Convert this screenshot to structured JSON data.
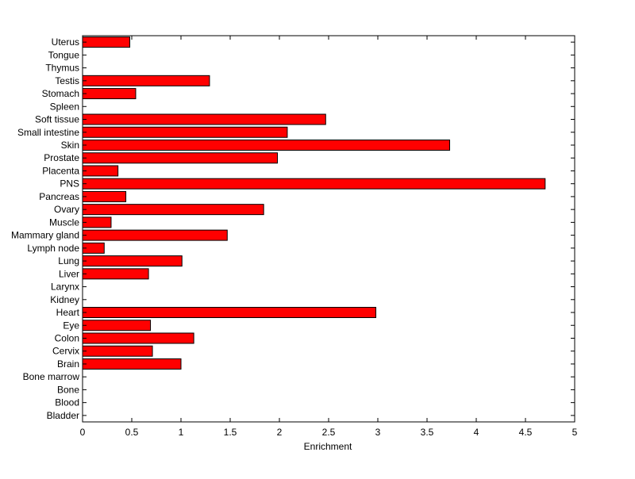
{
  "chart_data": {
    "type": "bar",
    "orientation": "horizontal",
    "title": "",
    "xlabel": "Enrichment",
    "ylabel": "",
    "xlim": [
      0,
      5
    ],
    "xticks": [
      0,
      0.5,
      1,
      1.5,
      2,
      2.5,
      3,
      3.5,
      4,
      4.5,
      5
    ],
    "xtick_labels": [
      "0",
      "0.5",
      "1",
      "1.5",
      "2",
      "2.5",
      "3",
      "3.5",
      "4",
      "4.5",
      "5"
    ],
    "grid": false,
    "bar_color": "#ff0000",
    "edge_color": "#000000",
    "categories": [
      "Bladder",
      "Blood",
      "Bone",
      "Bone marrow",
      "Brain",
      "Cervix",
      "Colon",
      "Eye",
      "Heart",
      "Kidney",
      "Larynx",
      "Liver",
      "Lung",
      "Lymph node",
      "Mammary gland",
      "Muscle",
      "Ovary",
      "Pancreas",
      "PNS",
      "Placenta",
      "Prostate",
      "Skin",
      "Small intestine",
      "Soft tissue",
      "Spleen",
      "Stomach",
      "Testis",
      "Thymus",
      "Tongue",
      "Uterus"
    ],
    "values": [
      0,
      0,
      0,
      0,
      1.0,
      0.71,
      1.13,
      0.69,
      2.98,
      0,
      0,
      0.67,
      1.01,
      0.22,
      1.47,
      0.29,
      1.84,
      0.44,
      4.7,
      0.36,
      1.98,
      3.73,
      2.08,
      2.47,
      0,
      0.54,
      1.29,
      0,
      0,
      0.48
    ]
  }
}
